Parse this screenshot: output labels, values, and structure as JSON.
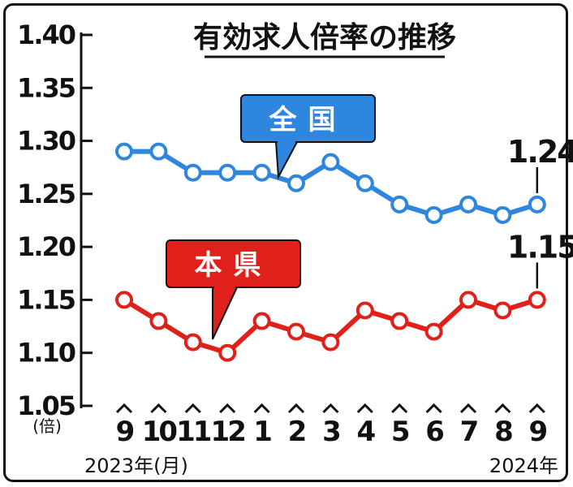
{
  "chart_data": {
    "type": "line",
    "title": "有効求人倍率の推移",
    "categories": [
      "9",
      "10",
      "11",
      "12",
      "1",
      "2",
      "3",
      "4",
      "5",
      "6",
      "7",
      "8",
      "9"
    ],
    "series": [
      {
        "name": "全国",
        "color": "#2e86de",
        "values": [
          1.29,
          1.29,
          1.27,
          1.27,
          1.27,
          1.26,
          1.28,
          1.26,
          1.24,
          1.23,
          1.24,
          1.23,
          1.24
        ],
        "end_label": "1.24"
      },
      {
        "name": "本県",
        "color": "#e0201b",
        "values": [
          1.15,
          1.13,
          1.11,
          1.1,
          1.13,
          1.12,
          1.11,
          1.14,
          1.13,
          1.12,
          1.15,
          1.14,
          1.15
        ],
        "end_label": "1.15"
      }
    ],
    "y_ticks": [
      "1.40",
      "1.35",
      "1.30",
      "1.25",
      "1.20",
      "1.15",
      "1.10",
      "1.05"
    ],
    "ylim": [
      1.05,
      1.4
    ],
    "ylabel": "(倍)",
    "x_start_label": "2023年(月)",
    "x_end_label": "2024年",
    "grid": false
  }
}
